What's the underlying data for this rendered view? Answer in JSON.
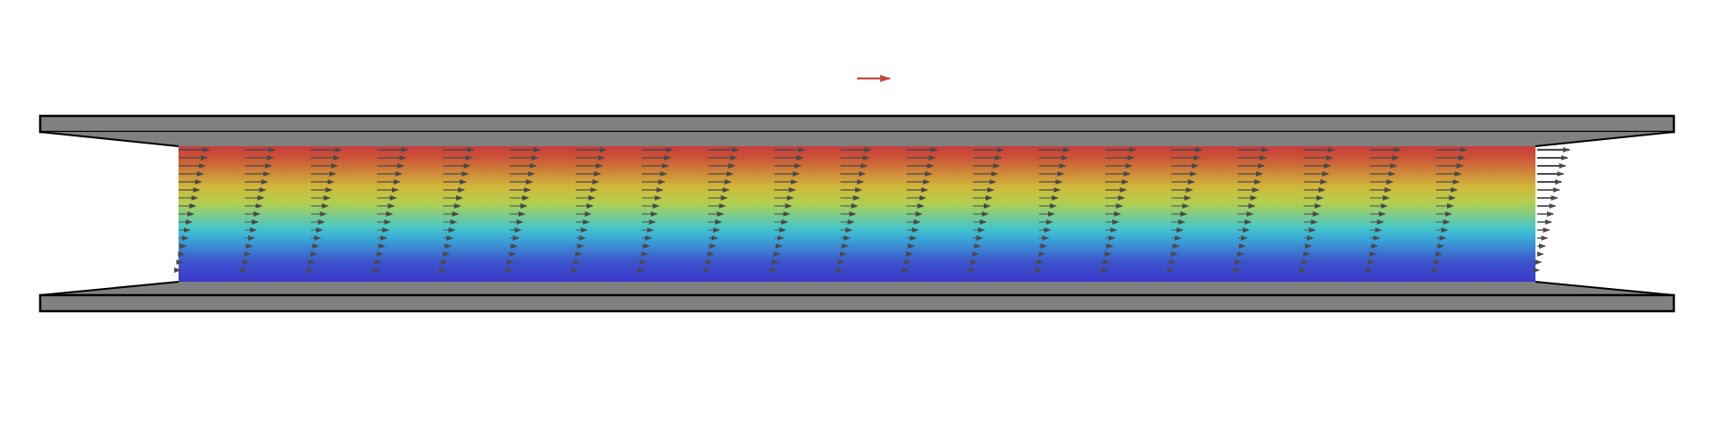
{
  "diagram": {
    "type": "channel-flow-velocity-field",
    "colors": {
      "background": "#ffffff",
      "plate_fill": "#808080",
      "plate_stroke": "#000000",
      "arrow": "#4a4a4a",
      "indicator_arrow": "#c8463c",
      "gradient_stops": [
        "#c83c3c",
        "#cc5238",
        "#d1b83a",
        "#b2cf4f",
        "#47c7c8",
        "#3aa9d8",
        "#3d55cc",
        "#3b37cc"
      ]
    },
    "arrow_field": {
      "columns": 21,
      "rows": 17,
      "profile": "linear-shear",
      "top_magnitude": 1.0,
      "bottom_magnitude": 0.0
    },
    "icons": [
      "flow-direction-arrow-icon"
    ]
  }
}
